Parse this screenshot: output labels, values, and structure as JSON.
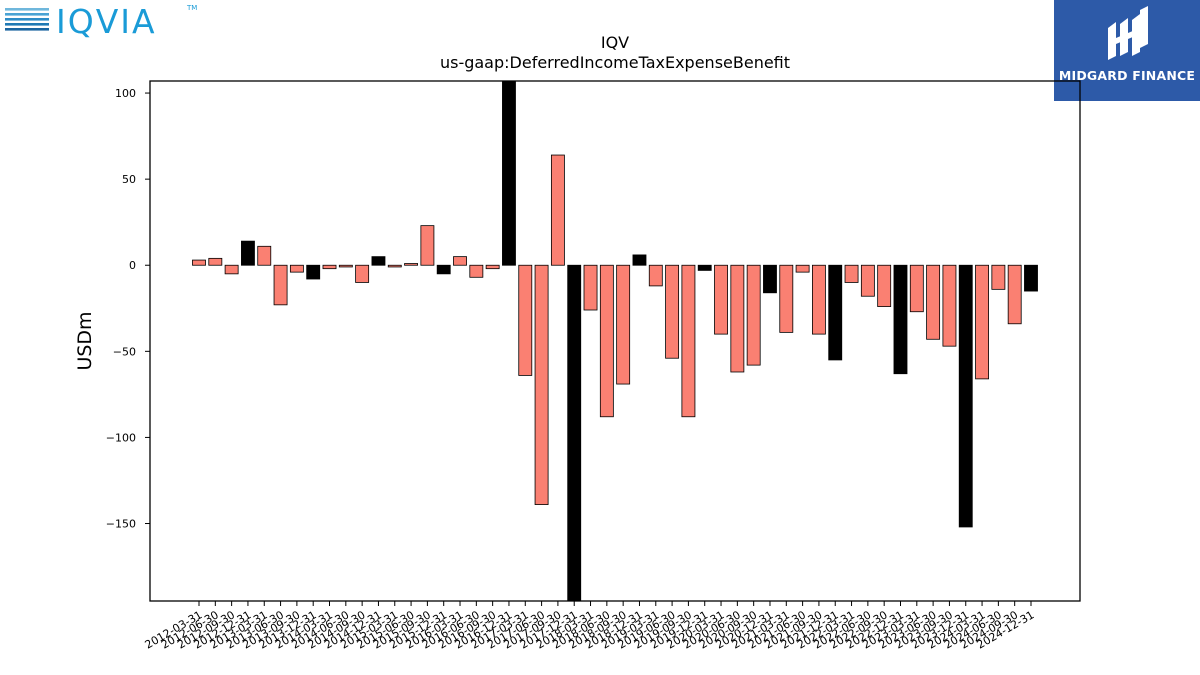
{
  "branding": {
    "left_logo_text": "IQVIA",
    "left_logo_tm": "TM",
    "left_logo_color": "#1a9bd7",
    "left_logo_dark": "#1a4f7a",
    "right_logo_text": "MIDGARD FINANCE",
    "right_logo_bg": "#2d5aa8"
  },
  "colors": {
    "quarter_bar": "#fa8072",
    "year_end_bar": "#000000",
    "bar_edge": "#000000"
  },
  "chart_data": {
    "type": "bar",
    "title": "IQV",
    "subtitle": "us-gaap:DeferredIncomeTaxExpenseBenefit",
    "xlabel": "",
    "ylabel": "USDm",
    "ylim": [
      -195,
      107
    ],
    "yticks": [
      100,
      50,
      0,
      -50,
      -100,
      -150
    ],
    "yticklabels": [
      "100",
      "50",
      "0",
      "−50",
      "−100",
      "−150"
    ],
    "grid": false,
    "categories": [
      "2012-03-31",
      "2012-06-30",
      "2012-09-30",
      "2012-12-31",
      "2013-03-31",
      "2013-06-30",
      "2013-09-30",
      "2013-12-31",
      "2014-03-31",
      "2014-06-30",
      "2014-09-30",
      "2014-12-31",
      "2015-03-31",
      "2015-06-30",
      "2015-09-30",
      "2015-12-31",
      "2016-03-31",
      "2016-06-30",
      "2016-09-30",
      "2016-12-31",
      "2017-03-31",
      "2017-06-30",
      "2017-09-30",
      "2017-12-31",
      "2018-03-31",
      "2018-06-30",
      "2018-09-30",
      "2018-12-31",
      "2019-03-31",
      "2019-06-30",
      "2019-09-30",
      "2019-12-31",
      "2020-03-31",
      "2020-06-30",
      "2020-09-30",
      "2020-12-31",
      "2021-03-31",
      "2021-06-30",
      "2021-09-30",
      "2021-12-31",
      "2022-03-31",
      "2022-06-30",
      "2022-09-30",
      "2022-12-31",
      "2023-03-31",
      "2023-06-30",
      "2023-09-30",
      "2023-12-31",
      "2024-03-31",
      "2024-06-30",
      "2024-09-30",
      "2024-12-31"
    ],
    "values": [
      3,
      4,
      -5,
      14,
      11,
      -23,
      -4,
      -8,
      -2,
      -1,
      -10,
      5,
      -1,
      1,
      23,
      -5,
      5,
      -7,
      -2,
      107,
      -64,
      -139,
      64,
      -195,
      -26,
      -88,
      -69,
      6,
      -12,
      -54,
      -88,
      -3,
      -40,
      -62,
      -58,
      -16,
      -39,
      -4,
      -40,
      -55,
      -10,
      -18,
      -24,
      -63,
      -27,
      -43,
      -47,
      -152,
      -66,
      -14,
      -34,
      -15
    ],
    "year_end": [
      false,
      false,
      false,
      true,
      false,
      false,
      false,
      true,
      false,
      false,
      false,
      true,
      false,
      false,
      false,
      true,
      false,
      false,
      false,
      true,
      false,
      false,
      false,
      true,
      false,
      false,
      false,
      true,
      false,
      false,
      false,
      true,
      false,
      false,
      false,
      true,
      false,
      false,
      false,
      true,
      false,
      false,
      false,
      true,
      false,
      false,
      false,
      true,
      false,
      false,
      false,
      true
    ]
  }
}
